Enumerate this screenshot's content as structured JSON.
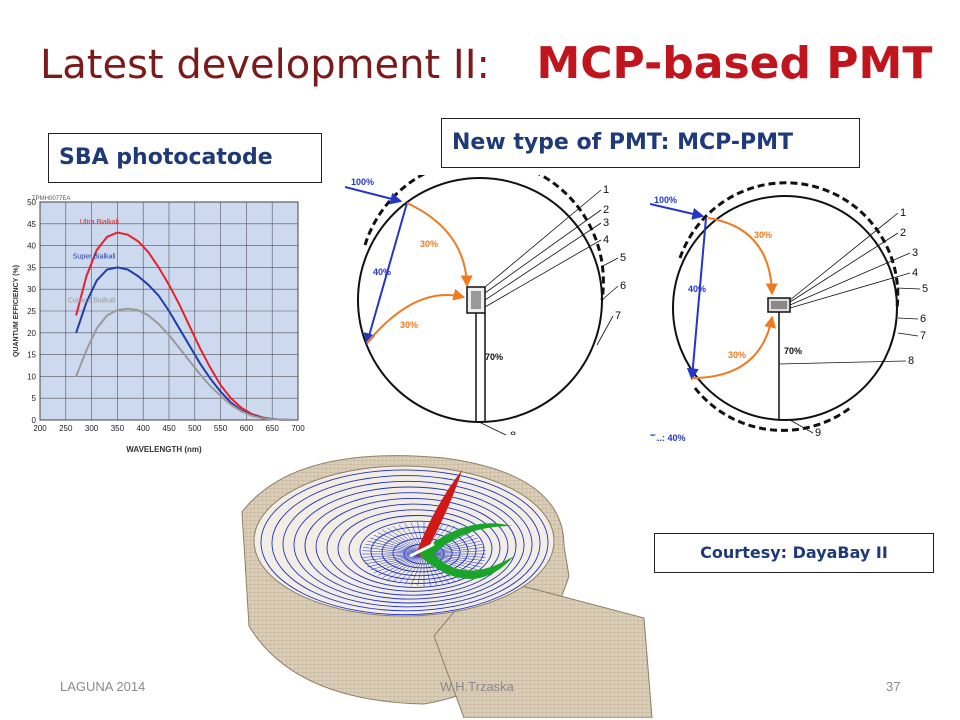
{
  "slide": {
    "title_main": "Latest development II:",
    "title_accent": "MCP-based PMT",
    "label_sba": "SBA photocatode",
    "label_mcp": "New type of PMT: MCP-PMT",
    "courtesy": "Courtesy: DayaBay II",
    "footer_left": "LAGUNA 2014",
    "footer_center": "W.H.Trzaska",
    "footer_right": "37"
  },
  "chart_data": {
    "type": "line",
    "header_text": "TPMH0077EA",
    "xlabel": "WAVELENGTH (nm)",
    "ylabel": "QUANTUM EFFICIENCY (%)",
    "xlim": [
      200,
      700
    ],
    "ylim": [
      0,
      50
    ],
    "x_ticks": [
      "200",
      "250",
      "300",
      "350",
      "400",
      "450",
      "500",
      "550",
      "600",
      "650",
      "700"
    ],
    "y_ticks": [
      "0",
      "5",
      "10",
      "15",
      "20",
      "25",
      "30",
      "35",
      "40",
      "45",
      "50"
    ],
    "grid": true,
    "series": [
      {
        "name": "Ultra Bialkali",
        "color": "#e8202a",
        "x": [
          270,
          290,
          310,
          330,
          350,
          370,
          390,
          410,
          430,
          450,
          470,
          490,
          510,
          530,
          550,
          570,
          590,
          610,
          630,
          650,
          670,
          690
        ],
        "y": [
          24,
          33,
          39,
          42,
          43,
          42.5,
          41,
          38.5,
          35,
          31,
          26.5,
          21.5,
          16.5,
          12,
          8,
          5,
          2.8,
          1.4,
          0.6,
          0.2,
          0.05,
          0
        ]
      },
      {
        "name": "Super Bialkali",
        "color": "#1f3fa8",
        "x": [
          270,
          290,
          310,
          330,
          350,
          370,
          390,
          410,
          430,
          450,
          470,
          490,
          510,
          530,
          550,
          570,
          590,
          610,
          630,
          650,
          670,
          690
        ],
        "y": [
          20,
          27,
          32,
          34.5,
          35,
          34.5,
          33,
          31,
          28.5,
          25,
          21,
          17,
          13,
          9.5,
          6.5,
          4,
          2.2,
          1.1,
          0.5,
          0.2,
          0.05,
          0
        ]
      },
      {
        "name": "Current Bialkali",
        "color": "#9a9a9a",
        "x": [
          270,
          290,
          310,
          330,
          350,
          370,
          390,
          410,
          430,
          450,
          470,
          490,
          510,
          530,
          550,
          570,
          590,
          610,
          630,
          650,
          670,
          690
        ],
        "y": [
          10,
          16,
          21,
          24,
          25.2,
          25.5,
          25.2,
          24,
          22,
          19.5,
          16.5,
          13.5,
          10.5,
          7.8,
          5.5,
          3.5,
          2,
          1,
          0.4,
          0.15,
          0.05,
          0
        ]
      }
    ]
  },
  "diagram_left": {
    "in_percent": "100%",
    "a_percent": "30%",
    "b_percent": "40%",
    "c_percent": "30%",
    "stem_percent": "70%",
    "callouts": [
      "1",
      "2",
      "3",
      "4",
      "5",
      "6",
      "7",
      "8"
    ]
  },
  "diagram_right": {
    "in_percent": "100%",
    "a_percent": "30%",
    "b_percent": "40%",
    "c_percent": "30%",
    "stem_percent": "70%",
    "bottom_text": "T...: 40%",
    "callouts": [
      "1",
      "2",
      "3",
      "4",
      "5",
      "6",
      "7",
      "8",
      "9"
    ]
  },
  "render_3d": {
    "colors": {
      "shell": "#d9ccb7",
      "field": "#2030c0",
      "red_track": "#d01818",
      "green_track": "#1aa52a"
    }
  }
}
